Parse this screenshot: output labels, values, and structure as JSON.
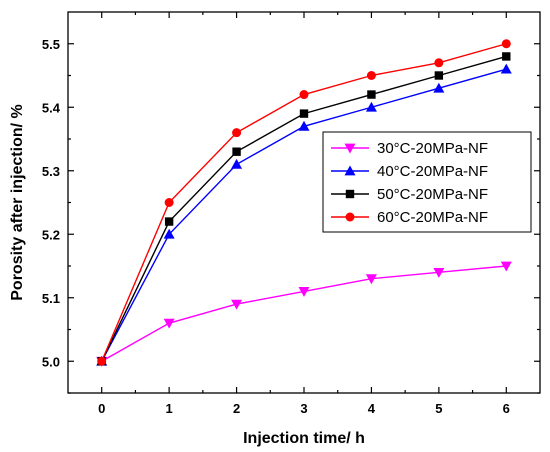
{
  "chart_data": {
    "type": "line",
    "xlabel": "Injection time/ h",
    "ylabel": "Porosity after injection/ %",
    "xlim": [
      -0.5,
      6.5
    ],
    "ylim": [
      4.95,
      5.55
    ],
    "x_ticks": [
      "0",
      "1",
      "2",
      "3",
      "4",
      "5",
      "6"
    ],
    "y_ticks": [
      "5.0",
      "5.1",
      "5.2",
      "5.3",
      "5.4",
      "5.5"
    ],
    "grid": false,
    "legend_position": "center-right",
    "x": [
      0,
      1,
      2,
      3,
      4,
      5,
      6
    ],
    "series": [
      {
        "name": "30°C-20MPa-NF",
        "color": "#ff00ff",
        "marker": "triangle-down",
        "values": [
          5.0,
          5.06,
          5.09,
          5.11,
          5.13,
          5.14,
          5.15
        ]
      },
      {
        "name": "40°C-20MPa-NF",
        "color": "#0000ff",
        "marker": "triangle-up",
        "values": [
          5.0,
          5.2,
          5.31,
          5.37,
          5.4,
          5.43,
          5.46
        ]
      },
      {
        "name": "50°C-20MPa-NF",
        "color": "#000000",
        "marker": "square",
        "values": [
          5.0,
          5.22,
          5.33,
          5.39,
          5.42,
          5.45,
          5.48
        ]
      },
      {
        "name": "60°C-20MPa-NF",
        "color": "#ff0000",
        "marker": "circle",
        "values": [
          5.0,
          5.25,
          5.36,
          5.42,
          5.45,
          5.47,
          5.5
        ]
      }
    ]
  }
}
